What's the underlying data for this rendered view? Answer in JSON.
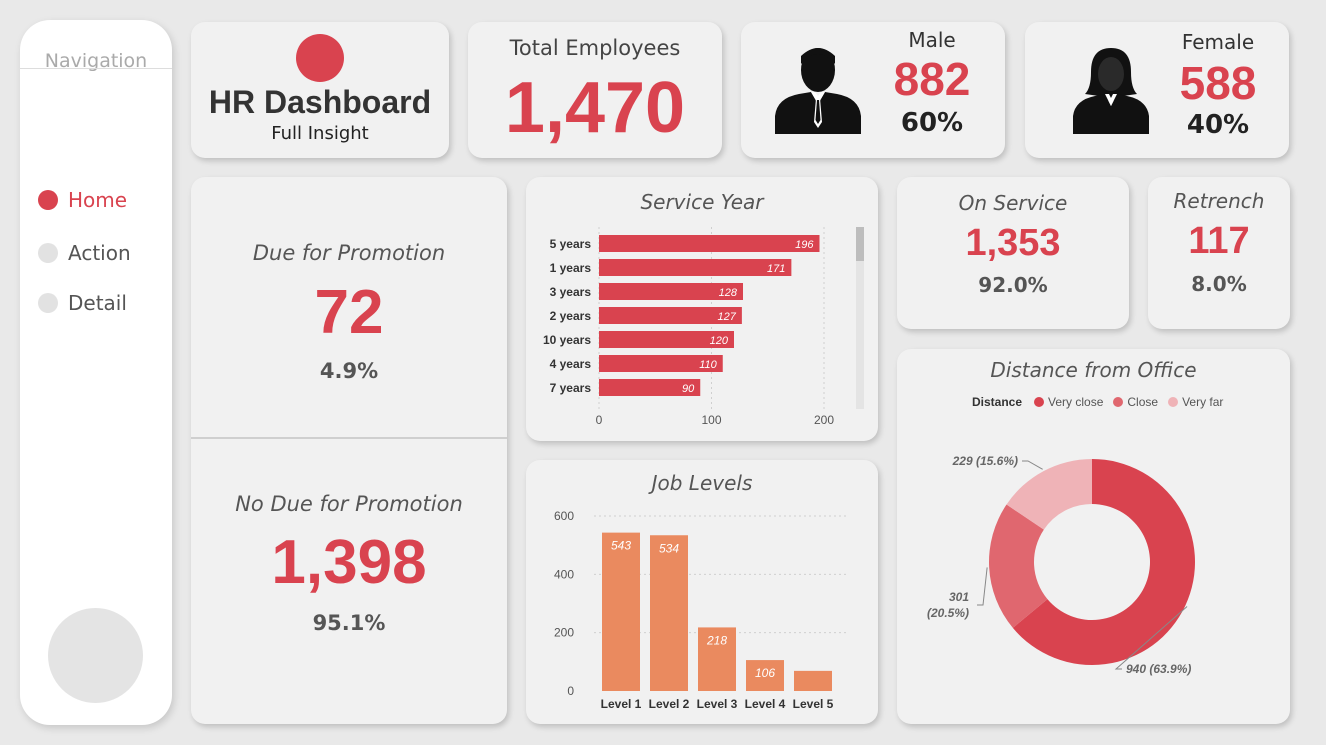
{
  "navigation": {
    "title": "Navigation",
    "items": [
      {
        "label": "Home",
        "active": true
      },
      {
        "label": "Action",
        "active": false
      },
      {
        "label": "Detail",
        "active": false
      }
    ]
  },
  "header": {
    "title": "HR Dashboard",
    "subtitle": "Full Insight",
    "accent_color": "#d9434f"
  },
  "total_employees": {
    "label": "Total Employees",
    "value": "1,470"
  },
  "male": {
    "label": "Male",
    "value": "882",
    "pct": "60%",
    "icon": "male-person-icon"
  },
  "female": {
    "label": "Female",
    "value": "588",
    "pct": "40%",
    "icon": "female-person-icon"
  },
  "promotion": {
    "due": {
      "label": "Due for Promotion",
      "value": "72",
      "pct": "4.9%"
    },
    "no_due": {
      "label": "No Due for Promotion",
      "value": "1,398",
      "pct": "95.1%"
    }
  },
  "on_service": {
    "label": "On Service",
    "value": "1,353",
    "pct": "92.0%"
  },
  "retrench": {
    "label": "Retrench",
    "value": "117",
    "pct": "8.0%"
  },
  "chart_data": [
    {
      "type": "bar",
      "orientation": "horizontal",
      "title": "Service Year",
      "categories": [
        "5 years",
        "1 years",
        "3 years",
        "2 years",
        "10 years",
        "4 years",
        "7 years"
      ],
      "values": [
        196,
        171,
        128,
        127,
        120,
        110,
        90
      ],
      "xlim": [
        0,
        200
      ],
      "xticks": [
        0,
        100,
        200
      ],
      "color": "#d9434f",
      "grid": true
    },
    {
      "type": "bar",
      "title": "Job Levels",
      "categories": [
        "Level 1",
        "Level 2",
        "Level 3",
        "Level 4",
        "Level 5"
      ],
      "values": [
        543,
        534,
        218,
        106,
        69
      ],
      "data_labels": [
        "543",
        "534",
        "218",
        "106",
        ""
      ],
      "ylim": [
        0,
        600
      ],
      "yticks": [
        0,
        200,
        400,
        600
      ],
      "color": "#ea8a5f",
      "grid": true
    },
    {
      "type": "pie",
      "donut": true,
      "title": "Distance from Office",
      "legend_title": "Distance",
      "legend_position": "top",
      "categories": [
        "Very close",
        "Close",
        "Very far"
      ],
      "values": [
        940,
        301,
        229
      ],
      "labels": [
        "940 (63.9%)",
        "301 (20.5%)",
        "229 (15.6%)"
      ],
      "colors": [
        "#d9434f",
        "#e0676f",
        "#efb3b7"
      ]
    }
  ]
}
